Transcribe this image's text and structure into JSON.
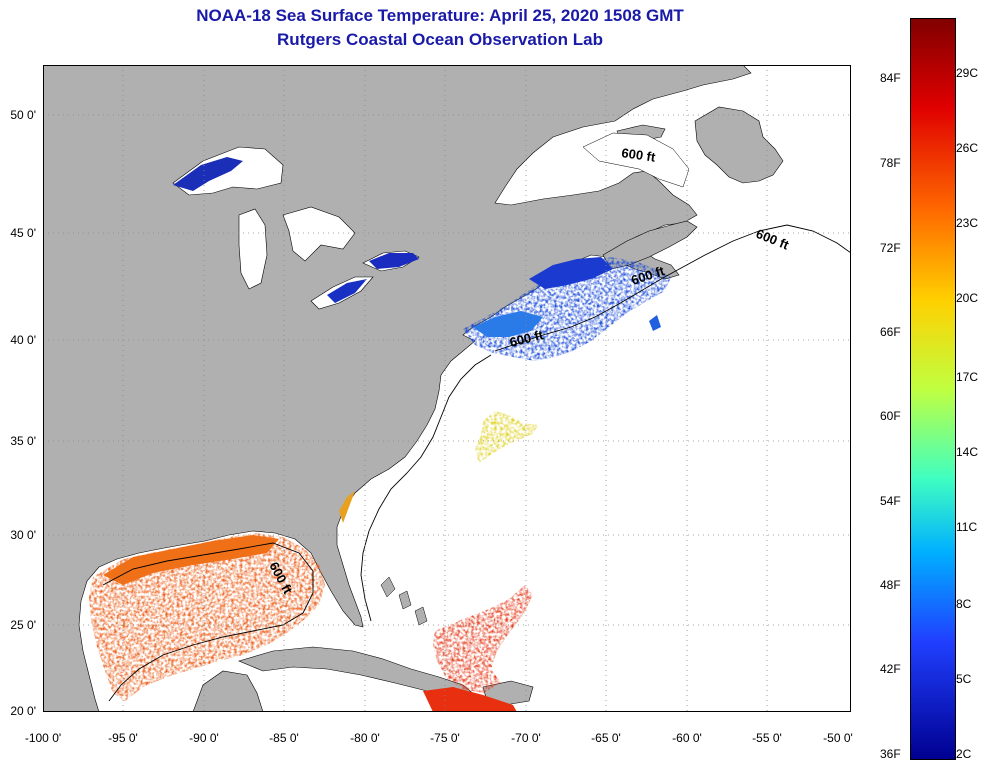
{
  "header": {
    "title": "NOAA-18 Sea Surface Temperature:  April 25, 2020 1508 GMT",
    "subtitle": "Rutgers Coastal Ocean Observation Lab"
  },
  "axes": {
    "lat_ticks": [
      "50 0'",
      "45 0'",
      "40 0'",
      "35 0'",
      "30 0'",
      "25 0'",
      "20 0'"
    ],
    "lon_ticks": [
      "-100 0'",
      "-95 0'",
      "-90 0'",
      "-85 0'",
      "-80 0'",
      "-75 0'",
      "-70 0'",
      "-65 0'",
      "-60 0'",
      "-55 0'",
      "-50 0'"
    ]
  },
  "colorbar": {
    "fahrenheit": [
      "84F",
      "78F",
      "72F",
      "66F",
      "60F",
      "54F",
      "48F",
      "42F",
      "36F"
    ],
    "celsius": [
      "29C",
      "26C",
      "23C",
      "20C",
      "17C",
      "14C",
      "11C",
      "8C",
      "5C",
      "2C"
    ]
  },
  "isobath_labels": [
    "600 ft",
    "600 ft",
    "600 ft",
    "600 ft"
  ],
  "colors": {
    "land": "#b0b0b0",
    "ocean": "#ffffff",
    "cold": "#1020c0",
    "warm": "#e83a10",
    "title": "#1a1aa8"
  }
}
